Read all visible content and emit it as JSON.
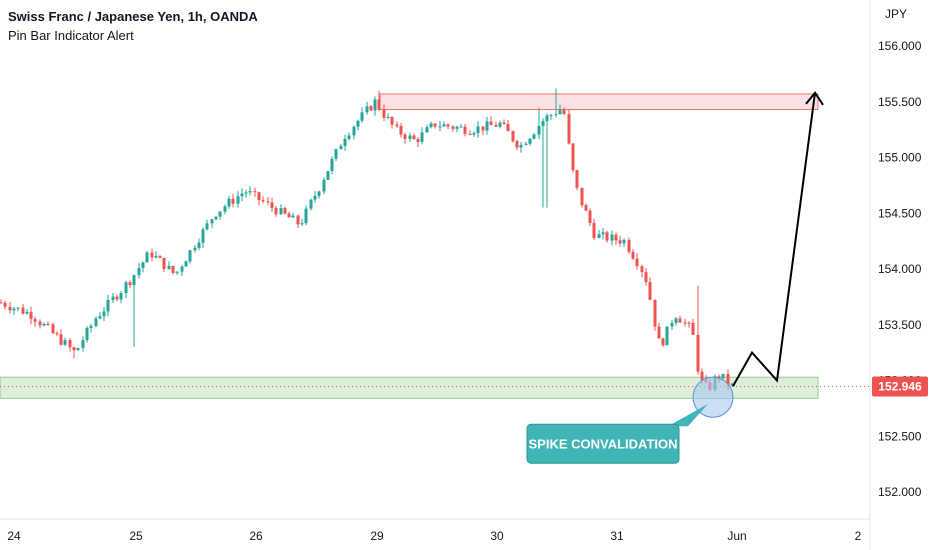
{
  "header": {
    "symbol_title": "Swiss Franc / Japanese Yen, 1h, OANDA",
    "indicator": "Pin Bar Indicator Alert"
  },
  "colors": {
    "up": "#26a69a",
    "down": "#ef5350",
    "resistance_fill": "#f8d7da",
    "support_fill": "#d5ead1",
    "last_price_bg": "#ef5350",
    "callout_bg": "#3fb5b8",
    "highlight_circle": "#a8c8ef"
  },
  "chart_data": {
    "type": "candlestick",
    "currency": "JPY",
    "y_ticks": [
      152.0,
      152.5,
      153.0,
      153.5,
      154.0,
      154.5,
      155.0,
      155.5,
      156.0
    ],
    "y_tick_labels": [
      "152.000",
      "152.500",
      "153.000",
      "153.500",
      "154.000",
      "154.500",
      "155.000",
      "155.500",
      "156.000"
    ],
    "ylim": [
      151.85,
      156.15
    ],
    "x_day_labels": [
      "24",
      "25",
      "26",
      "29",
      "30",
      "31",
      "Jun",
      "2"
    ],
    "last_price": 152.946,
    "last_price_label": "152.946",
    "resistance_zone": [
      155.43,
      155.57
    ],
    "support_zone": [
      152.84,
      153.03
    ],
    "projection_path": [
      152.95,
      153.25,
      153.0,
      155.58
    ],
    "annotation": "SPIKE CONVALIDATION",
    "key_points": [
      {
        "label": "start",
        "close": 153.7
      },
      {
        "label": "dip_24",
        "close": 153.25
      },
      {
        "label": "peak_29",
        "close": 155.55
      },
      {
        "label": "spike_30",
        "close": 155.55
      },
      {
        "label": "low_31",
        "close": 152.85
      },
      {
        "label": "last",
        "close": 152.946
      }
    ]
  }
}
